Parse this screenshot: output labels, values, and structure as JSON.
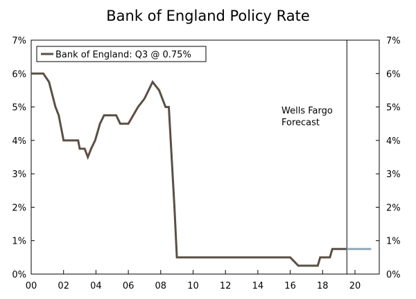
{
  "chart_data": {
    "type": "line",
    "title": "Bank of England Policy Rate",
    "xlabel": "",
    "ylabel": "",
    "xlim": [
      2000,
      2021.5
    ],
    "ylim": [
      0,
      7
    ],
    "x_ticks": [
      2000,
      2002,
      2004,
      2006,
      2008,
      2010,
      2012,
      2014,
      2016,
      2018,
      2020
    ],
    "x_tick_labels": [
      "00",
      "02",
      "04",
      "06",
      "08",
      "10",
      "12",
      "14",
      "16",
      "18",
      "20"
    ],
    "y_ticks": [
      0,
      1,
      2,
      3,
      4,
      5,
      6,
      7
    ],
    "y_tick_labels": [
      "0%",
      "1%",
      "2%",
      "3%",
      "4%",
      "5%",
      "6%",
      "7%"
    ],
    "grid": false,
    "legend": {
      "position": "top-left",
      "entries": [
        "Bank of England: Q3 @ 0.75%"
      ]
    },
    "forecast_start": 2019.5,
    "annotation": {
      "lines": [
        "Wells Fargo",
        "Forecast"
      ]
    },
    "colors": {
      "actual": "#5b4e43",
      "forecast": "#8fa8bd",
      "axis": "#000000"
    },
    "series": [
      {
        "name": "Bank of England: Q3 @ 0.75%",
        "x": [
          2000,
          2000.75,
          2001.1,
          2001.5,
          2001.7,
          2002,
          2002.9,
          2003,
          2003.3,
          2003.5,
          2003.7,
          2003.95,
          2004.25,
          2004.5,
          2005,
          2005.25,
          2005.5,
          2006,
          2006.3,
          2006.6,
          2007,
          2007.5,
          2007.9,
          2008.3,
          2008.5,
          2008.85,
          2009,
          2016,
          2016.5,
          2017.7,
          2017.85,
          2018.45,
          2018.6,
          2019.5
        ],
        "values": [
          6,
          6,
          5.75,
          5,
          4.75,
          4,
          4,
          3.75,
          3.75,
          3.5,
          3.75,
          4,
          4.5,
          4.75,
          4.75,
          4.75,
          4.5,
          4.5,
          4.75,
          5,
          5.25,
          5.75,
          5.5,
          5,
          5,
          2,
          0.5,
          0.5,
          0.25,
          0.25,
          0.5,
          0.5,
          0.75,
          0.75
        ]
      },
      {
        "name": "Wells Fargo Forecast",
        "x": [
          2019.5,
          2021
        ],
        "values": [
          0.75,
          0.75
        ]
      }
    ]
  }
}
